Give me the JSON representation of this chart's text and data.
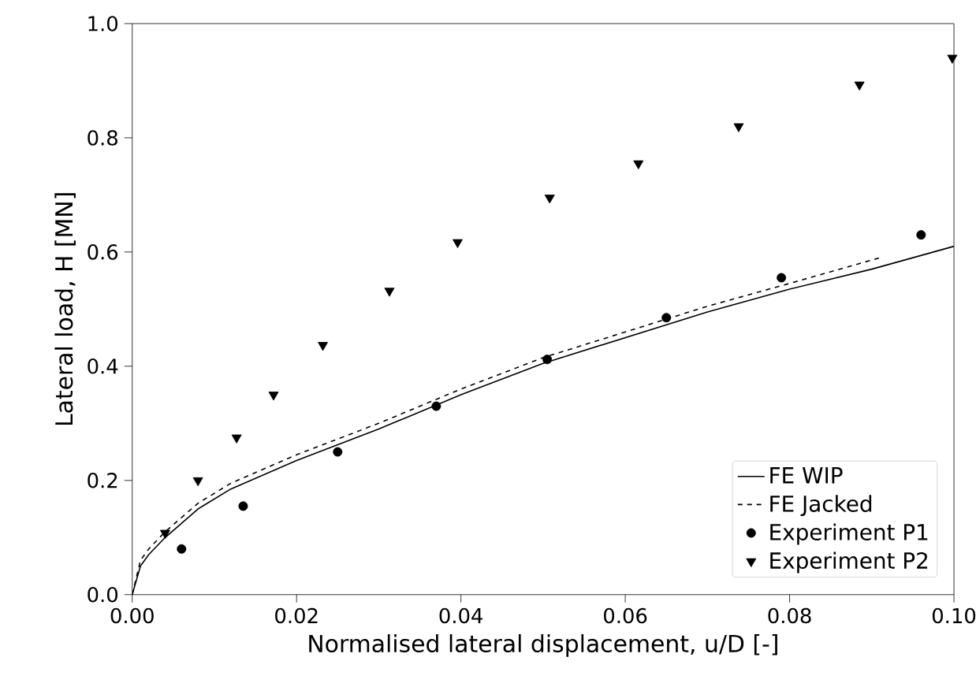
{
  "chart_data": {
    "type": "line",
    "xlabel": "Normalised lateral displacement, u/D [-]",
    "ylabel": "Lateral load, H [MN]",
    "xlim": [
      0,
      0.1
    ],
    "ylim": [
      0,
      1
    ],
    "xticks": [
      {
        "value": 0,
        "label": "0.00"
      },
      {
        "value": 0.02,
        "label": "0.02"
      },
      {
        "value": 0.04,
        "label": "0.04"
      },
      {
        "value": 0.06,
        "label": "0.06"
      },
      {
        "value": 0.08,
        "label": "0.08"
      },
      {
        "value": 0.1,
        "label": "0.10"
      }
    ],
    "yticks": [
      {
        "value": 0,
        "label": "0.0"
      },
      {
        "value": 0.2,
        "label": "0.2"
      },
      {
        "value": 0.4,
        "label": "0.4"
      },
      {
        "value": 0.6,
        "label": "0.6"
      },
      {
        "value": 0.8,
        "label": "0.8"
      },
      {
        "value": 1,
        "label": "1.0"
      }
    ],
    "legend": "bottom right",
    "grid": false,
    "series": [
      {
        "name": "FE WIP",
        "line_style": "solid",
        "marker": "none",
        "color": "#000000",
        "x": [
          0,
          0.001,
          0.002,
          0.004,
          0.008,
          0.012,
          0.02,
          0.03,
          0.04,
          0.05,
          0.06,
          0.07,
          0.08,
          0.09,
          0.1
        ],
        "values": [
          0,
          0.05,
          0.07,
          0.1,
          0.15,
          0.185,
          0.235,
          0.29,
          0.35,
          0.405,
          0.45,
          0.495,
          0.535,
          0.57,
          0.61
        ]
      },
      {
        "name": "FE Jacked",
        "line_style": "dashed",
        "marker": "none",
        "color": "#000000",
        "x": [
          0,
          0.001,
          0.002,
          0.004,
          0.008,
          0.012,
          0.02,
          0.03,
          0.04,
          0.05,
          0.06,
          0.07,
          0.08,
          0.091
        ],
        "values": [
          0,
          0.06,
          0.08,
          0.11,
          0.16,
          0.195,
          0.245,
          0.3,
          0.36,
          0.415,
          0.46,
          0.505,
          0.545,
          0.59
        ]
      },
      {
        "name": "Experiment P1",
        "type": "scatter",
        "marker": "circle",
        "color": "#000000",
        "x": [
          0.006,
          0.0135,
          0.025,
          0.037,
          0.0505,
          0.065,
          0.079,
          0.096
        ],
        "values": [
          0.08,
          0.155,
          0.25,
          0.33,
          0.412,
          0.485,
          0.555,
          0.63
        ]
      },
      {
        "name": "Experiment P2",
        "type": "scatter",
        "marker": "triangle",
        "color": "#000000",
        "x": [
          0.004,
          0.008,
          0.0127,
          0.0172,
          0.0232,
          0.0313,
          0.0396,
          0.0508,
          0.0616,
          0.0738,
          0.0885,
          0.0998
        ],
        "values": [
          0.108,
          0.2,
          0.275,
          0.35,
          0.437,
          0.532,
          0.617,
          0.695,
          0.755,
          0.82,
          0.893,
          0.94
        ]
      }
    ]
  }
}
